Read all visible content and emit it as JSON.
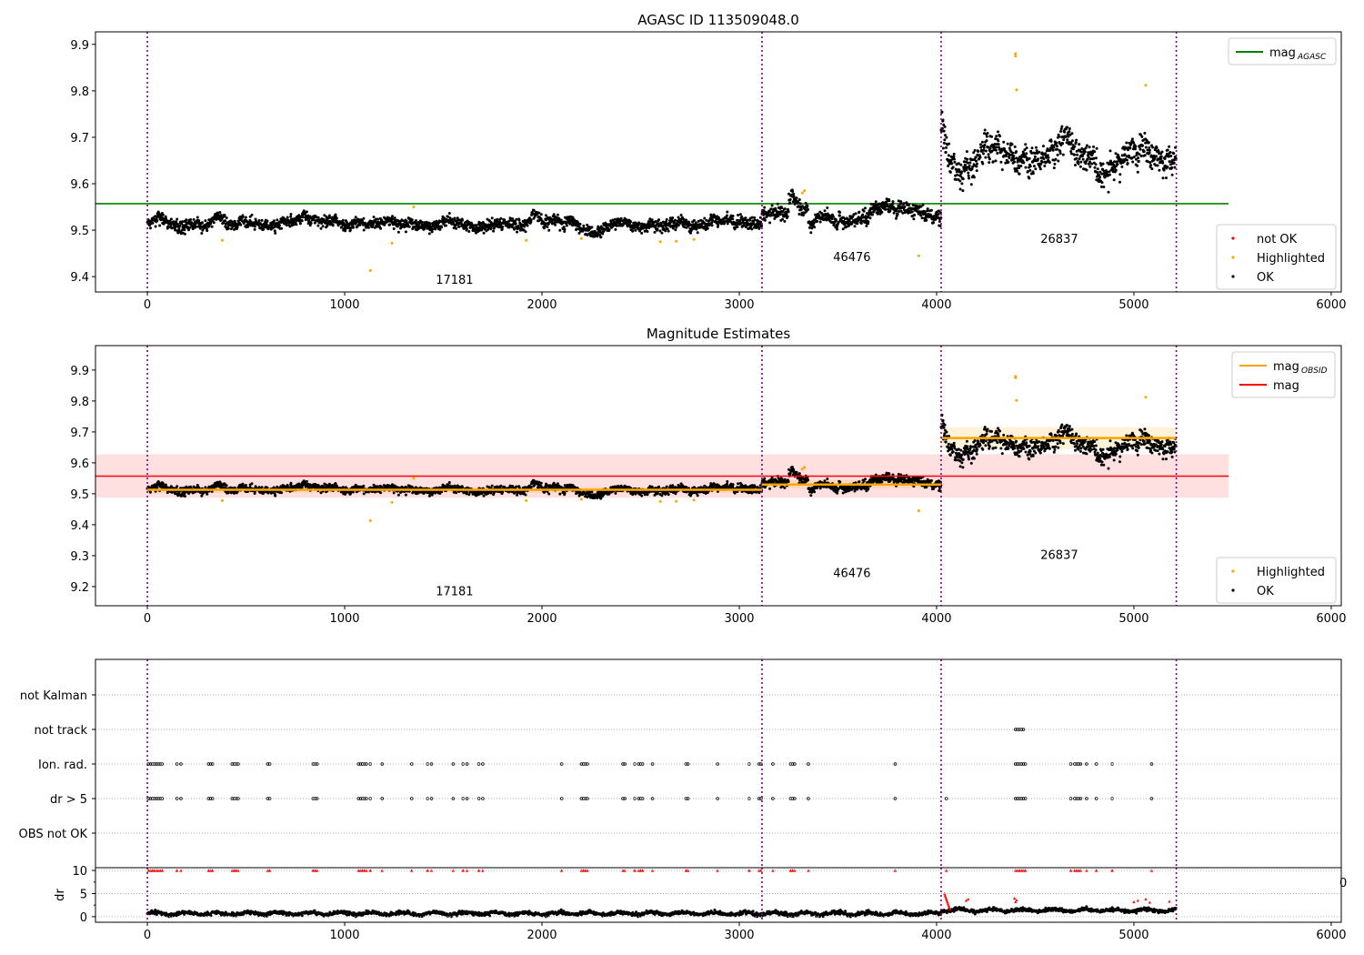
{
  "chart_data": [
    {
      "type": "scatter",
      "title": "AGASC ID 113509048.0",
      "xlim": [
        -263,
        6051
      ],
      "ylim": [
        9.367,
        9.927
      ],
      "xticks": [
        0,
        1000,
        2000,
        3000,
        4000,
        5000,
        6000
      ],
      "xtick_labels": [
        "0",
        "1000",
        "2000",
        "3000",
        "4000",
        "5000",
        "6000"
      ],
      "yticks": [
        9.4,
        9.5,
        9.6,
        9.7,
        9.8,
        9.9
      ],
      "ytick_labels": [
        "9.4",
        "9.5",
        "9.6",
        "9.7",
        "9.8",
        "9.9"
      ],
      "mag_agasc": 9.557,
      "mag_agasc_range": [
        -263,
        5480
      ],
      "legend_top": [
        {
          "label": "mag",
          "sub": "AGASC",
          "color": "#008000"
        }
      ],
      "legend_bottom": [
        {
          "label": "not OK",
          "color": "#ff0000"
        },
        {
          "label": "Highlighted",
          "color": "#ffa500"
        },
        {
          "label": "OK",
          "color": "#000000"
        }
      ],
      "obsid_labels": [
        {
          "text": "17181",
          "x": 1557,
          "y": 9.385
        },
        {
          "text": "46476",
          "x": 3571,
          "y": 9.434
        },
        {
          "text": "26837",
          "x": 4622,
          "y": 9.473
        }
      ]
    },
    {
      "type": "scatter",
      "title": "Magnitude Estimates",
      "xlim": [
        -263,
        6051
      ],
      "ylim": [
        9.138,
        9.979
      ],
      "xticks": [
        0,
        1000,
        2000,
        3000,
        4000,
        5000,
        6000
      ],
      "xtick_labels": [
        "0",
        "1000",
        "2000",
        "3000",
        "4000",
        "5000",
        "6000"
      ],
      "yticks": [
        9.2,
        9.3,
        9.4,
        9.5,
        9.6,
        9.7,
        9.8,
        9.9
      ],
      "ytick_labels": [
        "9.2",
        "9.3",
        "9.4",
        "9.5",
        "9.6",
        "9.7",
        "9.8",
        "9.9"
      ],
      "mag": 9.557,
      "mag_band": [
        9.487,
        9.628
      ],
      "mag_range": [
        -263,
        5480
      ],
      "mag_obsid_segments": [
        {
          "x0": 0,
          "x1": 3115,
          "mag": 9.513,
          "band": [
            9.503,
            9.523
          ]
        },
        {
          "x0": 3115,
          "x1": 4023,
          "mag": 9.53,
          "band": [
            9.518,
            9.545
          ]
        },
        {
          "x0": 4023,
          "x1": 5215,
          "mag": 9.68,
          "band": [
            9.645,
            9.715
          ]
        }
      ],
      "legend_top": [
        {
          "label": "mag",
          "sub": "OBSID",
          "color": "#ffa500"
        },
        {
          "label": "mag",
          "sub": "",
          "color": "#ff0000"
        }
      ],
      "legend_bottom": [
        {
          "label": "Highlighted",
          "color": "#ffa500"
        },
        {
          "label": "OK",
          "color": "#000000"
        }
      ],
      "obsid_labels": [
        {
          "text": "17181",
          "x": 1557,
          "y": 9.172
        },
        {
          "text": "46476",
          "x": 3571,
          "y": 9.231
        },
        {
          "text": "26837",
          "x": 4622,
          "y": 9.29
        }
      ]
    },
    {
      "type": "scatter",
      "title": "",
      "categories": [
        "not Kalman",
        "not track",
        "Ion. rad.",
        "dr > 5",
        "OBS not OK"
      ],
      "xlim": [
        -263,
        6051
      ],
      "flag_times": {
        "not track": [
          4400,
          4410,
          4420,
          4430,
          4440
        ],
        "Ion. rad.": [
          5,
          15,
          25,
          35,
          45,
          55,
          65,
          75,
          150,
          170,
          310,
          320,
          330,
          430,
          440,
          450,
          460,
          610,
          620,
          840,
          850,
          860,
          1070,
          1080,
          1090,
          1100,
          1110,
          1130,
          1190,
          1340,
          1420,
          1440,
          1550,
          1600,
          1620,
          1680,
          1700,
          2100,
          2200,
          2210,
          2220,
          2230,
          2410,
          2420,
          2470,
          2490,
          2500,
          2510,
          2560,
          2730,
          2740,
          2890,
          3050,
          3100,
          3110,
          3170,
          3260,
          3270,
          3280,
          3350,
          3790,
          4400,
          4410,
          4420,
          4430,
          4440,
          4450,
          4680,
          4700,
          4710,
          4720,
          4730,
          4760,
          4810,
          4890,
          5090
        ],
        "dr > 5": [
          5,
          15,
          25,
          35,
          45,
          55,
          65,
          75,
          150,
          170,
          310,
          320,
          330,
          430,
          440,
          450,
          460,
          610,
          620,
          840,
          850,
          860,
          1070,
          1080,
          1090,
          1100,
          1110,
          1130,
          1190,
          1340,
          1420,
          1440,
          1550,
          1600,
          1620,
          1680,
          1700,
          2100,
          2200,
          2210,
          2220,
          2230,
          2410,
          2420,
          2470,
          2490,
          2500,
          2510,
          2560,
          2730,
          2740,
          2890,
          3050,
          3100,
          3110,
          3170,
          3260,
          3270,
          3280,
          3350,
          3790,
          4050,
          4400,
          4410,
          4420,
          4430,
          4440,
          4450,
          4680,
          4700,
          4710,
          4720,
          4730,
          4760,
          4810,
          4890,
          5090
        ]
      },
      "dr_ylabel": "dr",
      "dr_ylim": [
        -1.2,
        10.6
      ],
      "dr_yticks": [
        0,
        5,
        10
      ],
      "dr_ytick_labels": [
        "0",
        "5",
        "10"
      ],
      "dr_clip_value": 10,
      "stray_label": "0"
    }
  ],
  "obs_boundaries": [
    0,
    3115,
    4023,
    5215
  ],
  "segments": [
    {
      "x0": 0,
      "x1": 3115,
      "mean": 9.515,
      "noise": 0.012
    },
    {
      "x0": 3115,
      "x1": 4023,
      "mean": 9.535,
      "noise": 0.015
    },
    {
      "x0": 4023,
      "x1": 5215,
      "mean": 9.675,
      "noise": 0.03
    }
  ],
  "highlighted": [
    [
      380,
      9.478
    ],
    [
      1130,
      9.413
    ],
    [
      1240,
      9.472
    ],
    [
      1350,
      9.55
    ],
    [
      1920,
      9.478
    ],
    [
      2200,
      9.482
    ],
    [
      2600,
      9.475
    ],
    [
      2680,
      9.476
    ],
    [
      2770,
      9.48
    ],
    [
      3320,
      9.58
    ],
    [
      3330,
      9.585
    ],
    [
      3910,
      9.445
    ],
    [
      4400,
      9.88
    ],
    [
      4400,
      9.875
    ],
    [
      4405,
      9.802
    ],
    [
      5060,
      9.812
    ]
  ],
  "colors": {
    "ok": "#000000",
    "highlighted": "#ffa500",
    "not_ok": "#ff0000",
    "agasc": "#008000",
    "boundary": "#800080"
  }
}
